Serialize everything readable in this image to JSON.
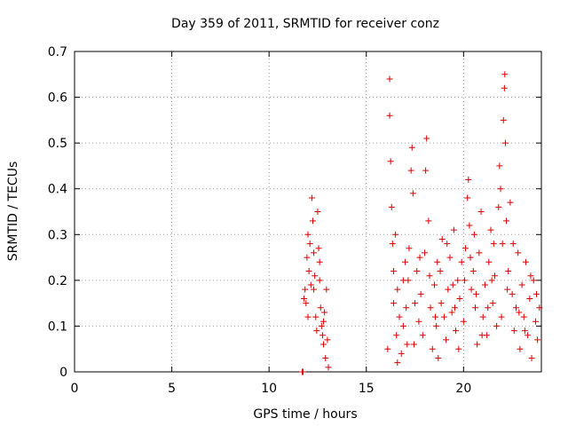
{
  "chart_data": {
    "type": "scatter",
    "title": "Day 359 of 2011, SRMTID for receiver conz",
    "xlabel": "GPS time / hours",
    "ylabel": "SRMTID / TECUs",
    "xlim": [
      0,
      24
    ],
    "ylim": [
      0,
      0.7
    ],
    "xticks": [
      "0",
      "5",
      "10",
      "15",
      "20"
    ],
    "yticks": [
      "0",
      "0.1",
      "0.2",
      "0.3",
      "0.4",
      "0.5",
      "0.6",
      "0.7"
    ],
    "grid": true,
    "marker": "+",
    "series_color": "#dd0000",
    "series": [
      {
        "name": "SRMTID",
        "points": [
          [
            11.7,
            0.0
          ],
          [
            11.75,
            0.0
          ],
          [
            11.8,
            0.16
          ],
          [
            11.85,
            0.18
          ],
          [
            11.9,
            0.15
          ],
          [
            11.95,
            0.25
          ],
          [
            12.0,
            0.3
          ],
          [
            12.05,
            0.22
          ],
          [
            12.1,
            0.28
          ],
          [
            12.15,
            0.19
          ],
          [
            12.2,
            0.38
          ],
          [
            12.25,
            0.33
          ],
          [
            12.3,
            0.26
          ],
          [
            12.35,
            0.21
          ],
          [
            12.4,
            0.12
          ],
          [
            12.45,
            0.09
          ],
          [
            12.5,
            0.35
          ],
          [
            12.55,
            0.27
          ],
          [
            12.6,
            0.24
          ],
          [
            12.65,
            0.14
          ],
          [
            12.7,
            0.1
          ],
          [
            12.75,
            0.08
          ],
          [
            12.8,
            0.06
          ],
          [
            12.85,
            0.13
          ],
          [
            12.9,
            0.03
          ],
          [
            12.95,
            0.18
          ],
          [
            13.0,
            0.07
          ],
          [
            13.05,
            0.01
          ],
          [
            12.0,
            0.12
          ],
          [
            12.3,
            0.18
          ],
          [
            12.6,
            0.2
          ],
          [
            12.8,
            0.11
          ],
          [
            16.1,
            0.05
          ],
          [
            16.2,
            0.64
          ],
          [
            16.2,
            0.56
          ],
          [
            16.25,
            0.46
          ],
          [
            16.3,
            0.36
          ],
          [
            16.35,
            0.28
          ],
          [
            16.4,
            0.15
          ],
          [
            16.5,
            0.3
          ],
          [
            16.55,
            0.08
          ],
          [
            16.6,
            0.02
          ],
          [
            16.7,
            0.12
          ],
          [
            16.8,
            0.04
          ],
          [
            16.9,
            0.2
          ],
          [
            17.0,
            0.24
          ],
          [
            17.1,
            0.06
          ],
          [
            17.2,
            0.27
          ],
          [
            17.3,
            0.44
          ],
          [
            17.35,
            0.49
          ],
          [
            17.4,
            0.39
          ],
          [
            17.5,
            0.15
          ],
          [
            17.6,
            0.22
          ],
          [
            17.7,
            0.11
          ],
          [
            17.8,
            0.17
          ],
          [
            17.9,
            0.08
          ],
          [
            18.0,
            0.26
          ],
          [
            18.05,
            0.44
          ],
          [
            18.1,
            0.51
          ],
          [
            18.2,
            0.33
          ],
          [
            18.3,
            0.14
          ],
          [
            18.4,
            0.05
          ],
          [
            18.5,
            0.19
          ],
          [
            18.6,
            0.1
          ],
          [
            18.7,
            0.03
          ],
          [
            18.8,
            0.22
          ],
          [
            18.9,
            0.29
          ],
          [
            19.0,
            0.12
          ],
          [
            19.1,
            0.07
          ],
          [
            19.2,
            0.18
          ],
          [
            19.3,
            0.25
          ],
          [
            19.4,
            0.13
          ],
          [
            19.5,
            0.31
          ],
          [
            19.6,
            0.09
          ],
          [
            19.7,
            0.2
          ],
          [
            19.8,
            0.16
          ],
          [
            19.9,
            0.24
          ],
          [
            20.0,
            0.11
          ],
          [
            20.1,
            0.27
          ],
          [
            20.2,
            0.38
          ],
          [
            20.25,
            0.42
          ],
          [
            20.3,
            0.32
          ],
          [
            20.4,
            0.18
          ],
          [
            20.5,
            0.22
          ],
          [
            20.6,
            0.14
          ],
          [
            20.7,
            0.06
          ],
          [
            20.8,
            0.26
          ],
          [
            20.9,
            0.35
          ],
          [
            21.0,
            0.12
          ],
          [
            21.1,
            0.19
          ],
          [
            21.2,
            0.08
          ],
          [
            21.3,
            0.24
          ],
          [
            21.4,
            0.31
          ],
          [
            21.5,
            0.15
          ],
          [
            21.6,
            0.21
          ],
          [
            21.7,
            0.1
          ],
          [
            21.8,
            0.36
          ],
          [
            21.85,
            0.45
          ],
          [
            21.9,
            0.4
          ],
          [
            22.0,
            0.28
          ],
          [
            22.05,
            0.55
          ],
          [
            22.1,
            0.62
          ],
          [
            22.12,
            0.65
          ],
          [
            22.15,
            0.5
          ],
          [
            22.2,
            0.33
          ],
          [
            22.3,
            0.22
          ],
          [
            22.4,
            0.37
          ],
          [
            22.5,
            0.17
          ],
          [
            22.6,
            0.09
          ],
          [
            22.7,
            0.14
          ],
          [
            22.8,
            0.26
          ],
          [
            22.9,
            0.05
          ],
          [
            23.0,
            0.19
          ],
          [
            23.1,
            0.12
          ],
          [
            23.2,
            0.24
          ],
          [
            23.3,
            0.08
          ],
          [
            23.4,
            0.16
          ],
          [
            23.5,
            0.03
          ],
          [
            23.6,
            0.2
          ],
          [
            23.7,
            0.11
          ],
          [
            23.8,
            0.07
          ],
          [
            23.9,
            0.14
          ],
          [
            16.6,
            0.18
          ],
          [
            16.9,
            0.1
          ],
          [
            17.15,
            0.2
          ],
          [
            17.45,
            0.06
          ],
          [
            17.75,
            0.25
          ],
          [
            18.25,
            0.21
          ],
          [
            18.55,
            0.12
          ],
          [
            18.85,
            0.15
          ],
          [
            19.15,
            0.28
          ],
          [
            19.45,
            0.19
          ],
          [
            19.75,
            0.05
          ],
          [
            20.05,
            0.2
          ],
          [
            20.35,
            0.25
          ],
          [
            20.65,
            0.17
          ],
          [
            20.95,
            0.08
          ],
          [
            21.25,
            0.14
          ],
          [
            21.55,
            0.28
          ],
          [
            21.95,
            0.12
          ],
          [
            22.25,
            0.18
          ],
          [
            22.55,
            0.28
          ],
          [
            22.85,
            0.13
          ],
          [
            23.15,
            0.09
          ],
          [
            23.45,
            0.21
          ],
          [
            23.75,
            0.17
          ],
          [
            16.4,
            0.22
          ],
          [
            17.05,
            0.14
          ],
          [
            18.65,
            0.24
          ],
          [
            19.55,
            0.14
          ],
          [
            20.55,
            0.3
          ],
          [
            21.45,
            0.2
          ]
        ]
      }
    ]
  }
}
